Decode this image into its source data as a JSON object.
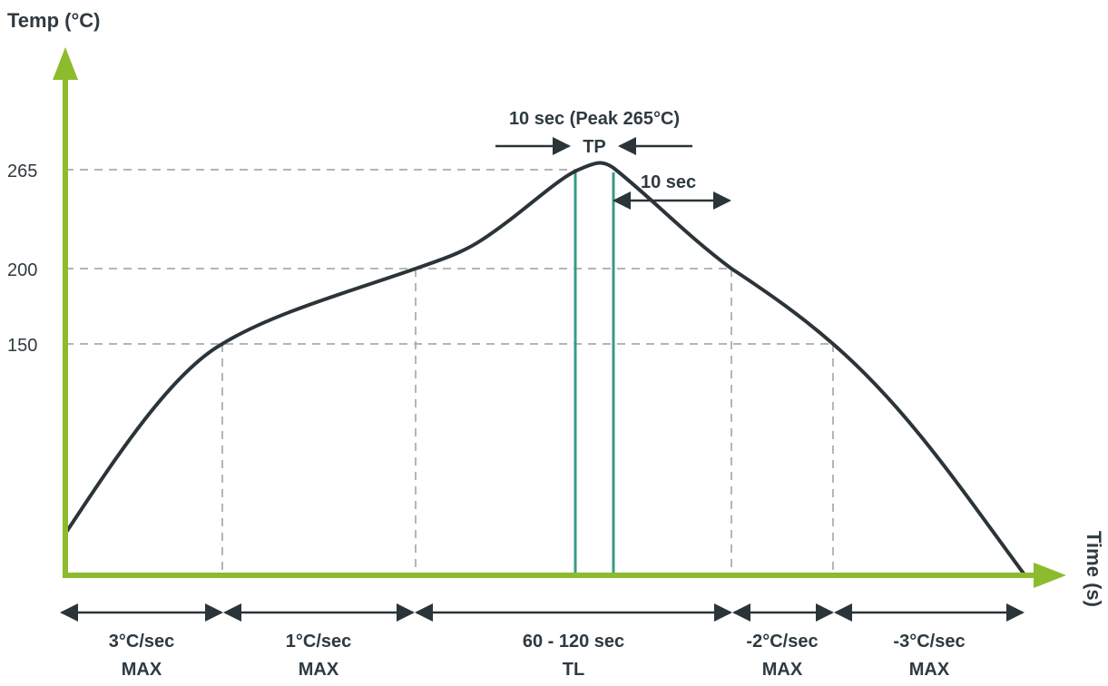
{
  "chart_data": {
    "type": "line",
    "ylabel": "Temp (°C)",
    "xlabel": "Time (s)",
    "y_ticks": [
      "265",
      "200",
      "150"
    ],
    "annotations": {
      "peak_label": "10 sec (Peak 265°C)",
      "tp_label": "TP",
      "ten_sec_label": "10 sec"
    },
    "segments": [
      {
        "line1": "3°C/sec",
        "line2": "MAX"
      },
      {
        "line1": "1°C/sec",
        "line2": "MAX"
      },
      {
        "line1": "60 - 120 sec",
        "line2": "TL"
      },
      {
        "line1": "-2°C/sec",
        "line2": "MAX"
      },
      {
        "line1": "-3°C/sec",
        "line2": "MAX"
      }
    ],
    "colors": {
      "axis": "#8dbb2e",
      "curve": "#2a3439",
      "guide": "#b5b5b5",
      "tl_lines": "#3a9a87",
      "text": "#2f3a40"
    }
  }
}
